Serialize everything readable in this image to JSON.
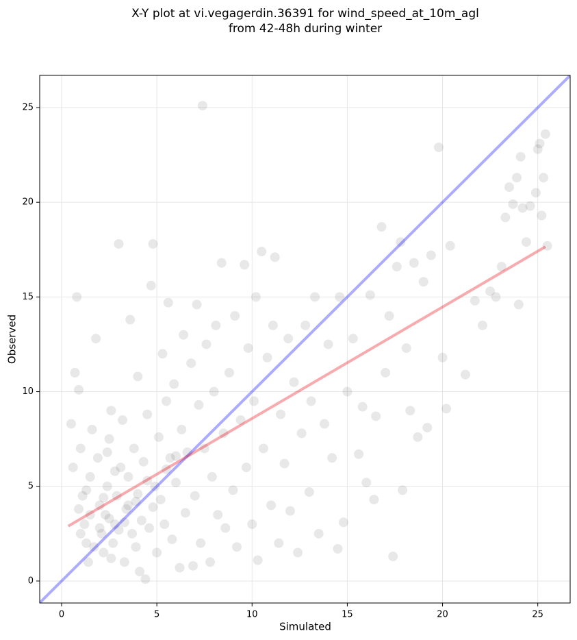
{
  "chart_data": {
    "type": "scatter",
    "title": [
      "X-Y plot at vi.vegagerdin.36391 for wind_speed_at_10m_agl",
      "from 42-48h during winter"
    ],
    "xlabel": "Simulated",
    "ylabel": "Observed",
    "xlim": [
      -1.15,
      26.7
    ],
    "ylim": [
      -1.16,
      26.7
    ],
    "xticks": [
      0,
      5,
      10,
      15,
      20,
      25
    ],
    "yticks": [
      0,
      5,
      10,
      15,
      20,
      25
    ],
    "grid": true,
    "color": "#000000",
    "x": [
      0.5,
      0.6,
      0.7,
      0.8,
      0.9,
      1.0,
      1.1,
      1.2,
      1.3,
      1.4,
      1.5,
      1.6,
      1.8,
      1.9,
      2.0,
      2.1,
      2.2,
      2.3,
      2.4,
      2.5,
      2.6,
      2.7,
      2.8,
      2.9,
      3.0,
      3.1,
      3.2,
      3.3,
      3.4,
      3.5,
      3.6,
      3.7,
      3.8,
      3.9,
      4.0,
      4.1,
      4.2,
      4.3,
      4.4,
      4.5,
      4.6,
      4.7,
      4.8,
      4.9,
      5.0,
      5.1,
      5.2,
      5.3,
      5.4,
      5.5,
      5.6,
      5.7,
      5.8,
      5.9,
      6.0,
      6.2,
      6.3,
      6.4,
      6.5,
      6.6,
      6.8,
      6.9,
      7.0,
      7.1,
      7.2,
      7.3,
      7.4,
      7.5,
      7.6,
      7.8,
      7.9,
      8.0,
      8.1,
      8.2,
      8.4,
      8.5,
      8.6,
      8.8,
      9.0,
      9.1,
      9.2,
      9.4,
      9.6,
      9.7,
      9.8,
      10.0,
      10.1,
      10.2,
      10.3,
      10.5,
      10.6,
      10.8,
      11.0,
      11.1,
      11.2,
      11.4,
      11.5,
      11.7,
      11.9,
      12.0,
      12.2,
      12.4,
      12.6,
      12.8,
      13.0,
      13.1,
      13.3,
      13.5,
      13.8,
      14.0,
      14.2,
      14.5,
      14.6,
      14.8,
      15.0,
      15.3,
      15.6,
      15.8,
      16.0,
      16.2,
      16.4,
      16.5,
      16.8,
      17.0,
      17.2,
      17.4,
      17.6,
      17.8,
      17.9,
      18.1,
      18.3,
      18.5,
      18.7,
      19.0,
      19.2,
      19.4,
      19.8,
      20.0,
      20.2,
      20.4,
      21.2,
      21.7,
      22.1,
      22.5,
      22.8,
      23.1,
      23.3,
      23.5,
      23.7,
      23.9,
      24.0,
      24.1,
      24.2,
      24.4,
      24.6,
      24.9,
      25.0,
      25.1,
      25.2,
      25.3,
      25.4,
      25.5,
      1.0,
      1.5,
      2.0,
      2.5,
      3.0,
      3.5,
      4.0,
      4.5,
      2.2,
      2.8,
      1.7,
      3.3,
      4.8,
      5.5,
      6.0,
      3.9,
      2.4,
      1.3,
      0.9,
      2.6
    ],
    "values": [
      8.3,
      6.0,
      11.0,
      15.0,
      10.1,
      7.0,
      4.5,
      3.0,
      2.0,
      1.0,
      5.5,
      8.0,
      12.8,
      6.5,
      4.0,
      2.5,
      1.5,
      3.5,
      5.0,
      7.5,
      9.0,
      2.0,
      3.0,
      4.5,
      17.8,
      6.0,
      8.5,
      1.0,
      3.8,
      5.5,
      13.8,
      2.5,
      7.0,
      4.2,
      10.8,
      0.5,
      3.2,
      6.3,
      0.1,
      8.8,
      2.8,
      15.6,
      17.8,
      5.0,
      1.5,
      7.6,
      4.3,
      12.0,
      3.0,
      9.5,
      14.7,
      6.5,
      2.2,
      10.4,
      5.2,
      0.7,
      8.0,
      13.0,
      3.6,
      6.8,
      11.5,
      0.8,
      4.5,
      14.6,
      9.3,
      2.0,
      25.1,
      7.0,
      12.5,
      1.0,
      5.5,
      10.0,
      13.5,
      3.5,
      16.8,
      7.8,
      2.8,
      11.0,
      4.8,
      14.0,
      1.8,
      8.5,
      16.7,
      6.0,
      12.3,
      3.0,
      9.5,
      15.0,
      1.1,
      17.4,
      7.0,
      11.8,
      4.0,
      13.5,
      17.1,
      2.0,
      8.8,
      6.2,
      12.8,
      3.7,
      10.5,
      1.5,
      7.8,
      13.5,
      4.7,
      9.5,
      15.0,
      2.5,
      8.3,
      12.5,
      6.5,
      1.7,
      15.0,
      3.1,
      10.0,
      12.8,
      6.7,
      9.2,
      5.2,
      15.1,
      4.3,
      8.7,
      18.7,
      11.0,
      14.0,
      1.3,
      16.6,
      17.9,
      4.8,
      12.3,
      9.0,
      16.8,
      7.6,
      15.8,
      8.1,
      17.2,
      22.9,
      11.8,
      9.1,
      17.7,
      10.9,
      14.8,
      13.5,
      15.3,
      15.0,
      16.6,
      19.2,
      20.8,
      19.9,
      21.3,
      14.6,
      22.4,
      19.7,
      17.9,
      19.8,
      20.5,
      22.8,
      23.1,
      19.3,
      21.3,
      23.6,
      17.7,
      2.5,
      3.5,
      2.8,
      3.3,
      2.7,
      4.0,
      4.6,
      5.3,
      4.4,
      5.8,
      1.8,
      3.1,
      3.9,
      5.9,
      6.6,
      1.8,
      6.8,
      4.8,
      3.8,
      1.2
    ],
    "identity_line": {
      "x": [
        -1.15,
        26.7
      ],
      "y": [
        -1.15,
        26.7
      ],
      "color": "#0000ff"
    },
    "fit_line": {
      "x": [
        0.35,
        25.4
      ],
      "y": [
        2.9,
        17.65
      ],
      "color": "#e8000b"
    }
  }
}
